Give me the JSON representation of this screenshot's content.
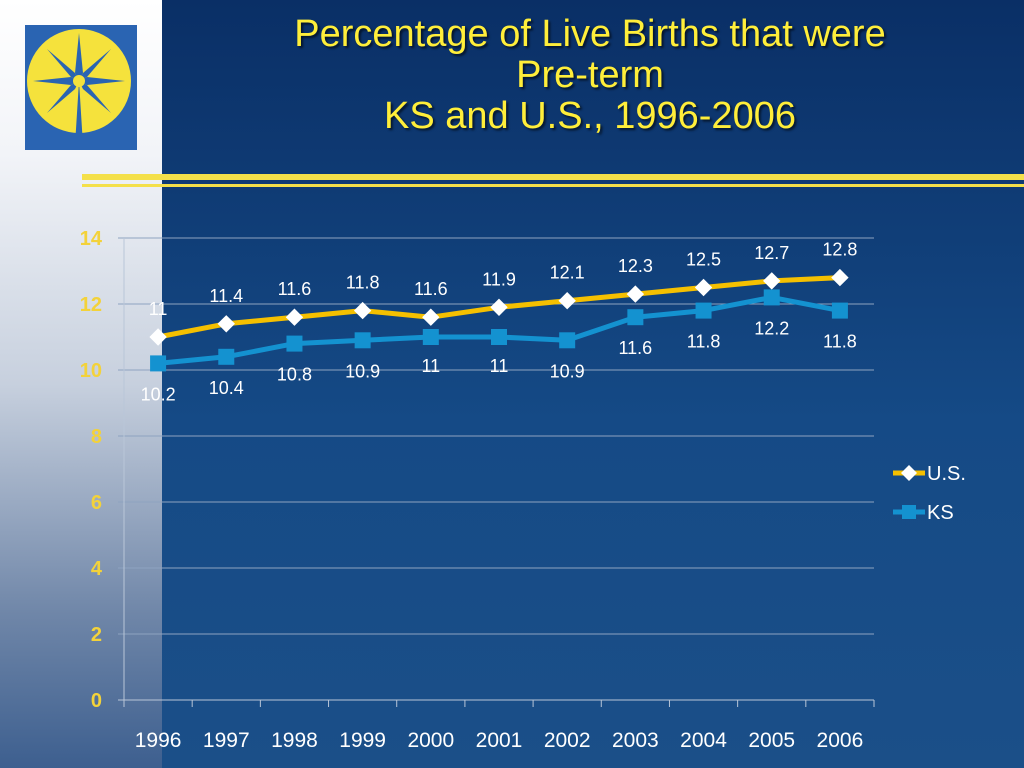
{
  "slide": {
    "title_lines": [
      "Percentage of Live Births that were",
      "Pre-term",
      "KS and U.S., 1996-2006"
    ]
  },
  "logo": {
    "icon": "star-compass-icon",
    "background": "#2a64b2",
    "color": "#f5e23c"
  },
  "colors": {
    "title": "#ffee3a",
    "axis_tick_labels_y": "#f3d23a",
    "axis_tick_labels_x": "#ffffff",
    "us_series": "#f5c000",
    "ks_series": "#1492d0",
    "rule": "#f4e04a"
  },
  "chart_data": {
    "type": "line",
    "title": "Percentage of Live Births that were Pre-term KS and U.S., 1996-2006",
    "xlabel": "",
    "ylabel": "",
    "categories": [
      "1996",
      "1997",
      "1998",
      "1999",
      "2000",
      "2001",
      "2002",
      "2003",
      "2004",
      "2005",
      "2006"
    ],
    "ylim": [
      0,
      14
    ],
    "yticks": [
      0,
      2,
      4,
      6,
      8,
      10,
      12,
      14
    ],
    "grid": true,
    "legend_position": "right",
    "series": [
      {
        "name": "U.S.",
        "marker": "diamond",
        "values": [
          11,
          11.4,
          11.6,
          11.8,
          11.6,
          11.9,
          12.1,
          12.3,
          12.5,
          12.7,
          12.8
        ],
        "labels": [
          "11",
          "11.4",
          "11.6",
          "11.8",
          "11.6",
          "11.9",
          "12.1",
          "12.3",
          "12.5",
          "12.7",
          "12.8"
        ]
      },
      {
        "name": "KS",
        "marker": "square",
        "values": [
          10.2,
          10.4,
          10.8,
          10.9,
          11,
          11,
          10.9,
          11.6,
          11.8,
          12.2,
          11.8
        ],
        "labels": [
          "10.2",
          "10.4",
          "10.8",
          "10.9",
          "11",
          "11",
          "10.9",
          "11.6",
          "11.8",
          "12.2",
          "11.8"
        ]
      }
    ]
  }
}
